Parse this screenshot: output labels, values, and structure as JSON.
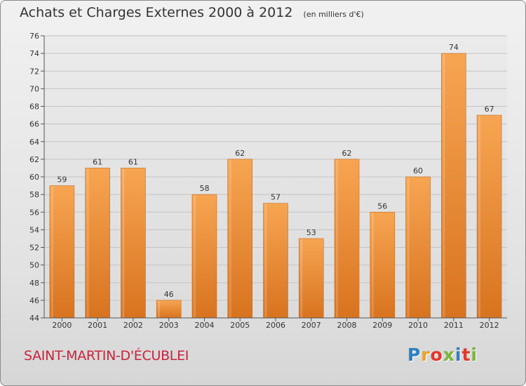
{
  "chart_data": {
    "type": "bar",
    "title": "Achats et Charges Externes 2000 à 2012",
    "unit": "(en milliers d'€)",
    "categories": [
      "2000",
      "2001",
      "2002",
      "2003",
      "2004",
      "2005",
      "2006",
      "2007",
      "2008",
      "2009",
      "2010",
      "2011",
      "2012"
    ],
    "values": [
      59,
      61,
      61,
      46,
      58,
      62,
      57,
      53,
      62,
      56,
      60,
      74,
      67
    ],
    "ylim": [
      44,
      76
    ],
    "ytick_step": 2,
    "grid": true,
    "bar_color": "#f2953d",
    "xlabel": "",
    "ylabel": ""
  },
  "place_name": "SAINT-MARTIN-D'ÉCUBLEI",
  "brand": {
    "letters": [
      "P",
      "r",
      "o",
      "x",
      "i",
      "t",
      "i"
    ],
    "colors": [
      "#2c7fc3",
      "#f0a21f",
      "#e2372b",
      "#7bb63a",
      "#2c7fc3",
      "#e2372b",
      "#7bb63a"
    ]
  }
}
